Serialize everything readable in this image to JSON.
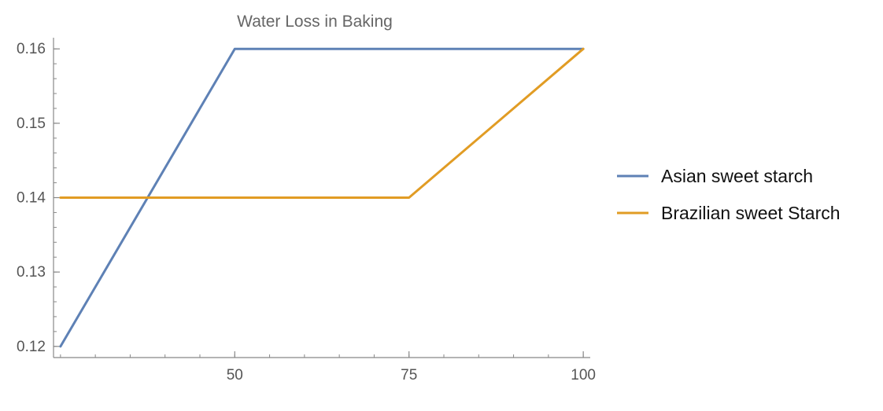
{
  "chart_data": {
    "type": "line",
    "title": "Water Loss in Baking",
    "xlabel": "",
    "ylabel": "",
    "x": [
      25,
      50,
      75,
      100
    ],
    "xlim": [
      24,
      101
    ],
    "ylim": [
      0.1185,
      0.1615
    ],
    "x_ticks": [
      50,
      75,
      100
    ],
    "x_tick_labels": [
      "50",
      "75",
      "100"
    ],
    "y_ticks": [
      0.12,
      0.13,
      0.14,
      0.15,
      0.16
    ],
    "y_tick_labels": [
      "0.12",
      "0.13",
      "0.14",
      "0.15",
      "0.16"
    ],
    "grid": false,
    "legend_position": "right",
    "series": [
      {
        "name": "Asian sweet starch",
        "values": [
          0.12,
          0.16,
          0.16,
          0.16
        ],
        "color": "#5E81B5"
      },
      {
        "name": "Brazilian sweet Starch",
        "values": [
          0.14,
          0.14,
          0.14,
          0.16
        ],
        "color": "#E19C24"
      }
    ]
  }
}
